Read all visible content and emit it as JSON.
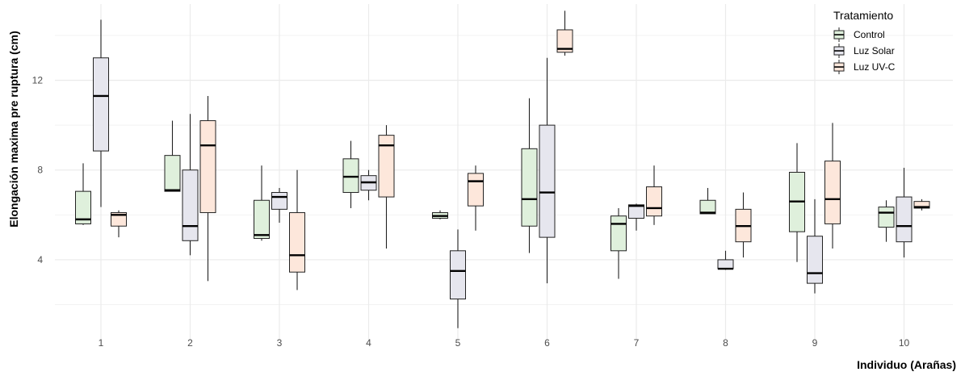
{
  "chart_data": {
    "type": "boxplot",
    "xlabel": "Individuo (Arañas)",
    "ylabel": "Elongación maxima pre ruptura (cm)",
    "ylim": [
      0.4,
      15.4
    ],
    "y_ticks": [
      4,
      8,
      12
    ],
    "categories": [
      "1",
      "2",
      "3",
      "4",
      "5",
      "6",
      "7",
      "8",
      "9",
      "10"
    ],
    "grid": true,
    "legend": {
      "title": "Tratamiento",
      "position": "top-right",
      "entries": [
        "Control",
        "Luz Solar",
        "Luz UV-C"
      ]
    },
    "series": [
      {
        "name": "Control",
        "color": "#dff0dc",
        "boxes": [
          {
            "category": "1",
            "min": 5.55,
            "q1": 5.6,
            "median": 5.8,
            "q3": 7.05,
            "max": 8.3
          },
          {
            "category": "2",
            "min": 7.05,
            "q1": 7.05,
            "median": 7.1,
            "q3": 8.65,
            "max": 10.2
          },
          {
            "category": "3",
            "min": 4.85,
            "q1": 4.95,
            "median": 5.1,
            "q3": 6.65,
            "max": 8.2
          },
          {
            "category": "4",
            "min": 6.3,
            "q1": 7.0,
            "median": 7.7,
            "q3": 8.5,
            "max": 9.3
          },
          {
            "category": "5",
            "min": 5.8,
            "q1": 5.85,
            "median": 5.95,
            "q3": 6.1,
            "max": 6.2
          },
          {
            "category": "6",
            "min": 4.3,
            "q1": 5.5,
            "median": 6.7,
            "q3": 8.95,
            "max": 11.2
          },
          {
            "category": "7",
            "min": 3.15,
            "q1": 4.4,
            "median": 5.6,
            "q3": 5.95,
            "max": 6.3
          },
          {
            "category": "8",
            "min": 6.05,
            "q1": 6.05,
            "median": 6.1,
            "q3": 6.65,
            "max": 7.2
          },
          {
            "category": "9",
            "min": 3.9,
            "q1": 5.25,
            "median": 6.6,
            "q3": 7.9,
            "max": 9.2
          },
          {
            "category": "10",
            "min": 4.8,
            "q1": 5.45,
            "median": 6.1,
            "q3": 6.35,
            "max": 6.65
          }
        ]
      },
      {
        "name": "Luz Solar",
        "color": "#e6e6ee",
        "boxes": [
          {
            "category": "1",
            "min": 6.35,
            "q1": 8.85,
            "median": 11.3,
            "q3": 13.0,
            "max": 14.7
          },
          {
            "category": "2",
            "min": 4.2,
            "q1": 4.85,
            "median": 5.5,
            "q3": 8.0,
            "max": 10.5
          },
          {
            "category": "3",
            "min": 5.65,
            "q1": 6.25,
            "median": 6.8,
            "q3": 7.0,
            "max": 7.2
          },
          {
            "category": "4",
            "min": 6.65,
            "q1": 7.1,
            "median": 7.45,
            "q3": 7.75,
            "max": 8.0
          },
          {
            "category": "5",
            "min": 0.95,
            "q1": 2.25,
            "median": 3.5,
            "q3": 4.4,
            "max": 5.35
          },
          {
            "category": "6",
            "min": 2.95,
            "q1": 5.0,
            "median": 7.0,
            "q3": 10.0,
            "max": 13.0
          },
          {
            "category": "7",
            "min": 5.3,
            "q1": 5.85,
            "median": 6.4,
            "q3": 6.45,
            "max": 6.5
          },
          {
            "category": "8",
            "min": 3.55,
            "q1": 3.6,
            "median": 3.6,
            "q3": 4.0,
            "max": 4.4
          },
          {
            "category": "9",
            "min": 2.5,
            "q1": 2.95,
            "median": 3.4,
            "q3": 5.05,
            "max": 6.7
          },
          {
            "category": "10",
            "min": 4.1,
            "q1": 4.8,
            "median": 5.5,
            "q3": 6.8,
            "max": 8.1
          }
        ]
      },
      {
        "name": "Luz UV-C",
        "color": "#fde7db",
        "boxes": [
          {
            "category": "1",
            "min": 5.0,
            "q1": 5.5,
            "median": 6.0,
            "q3": 6.1,
            "max": 6.2
          },
          {
            "category": "2",
            "min": 3.05,
            "q1": 6.1,
            "median": 9.1,
            "q3": 10.2,
            "max": 11.3
          },
          {
            "category": "3",
            "min": 2.65,
            "q1": 3.45,
            "median": 4.2,
            "q3": 6.1,
            "max": 8.0
          },
          {
            "category": "4",
            "min": 4.5,
            "q1": 6.8,
            "median": 9.1,
            "q3": 9.55,
            "max": 10.0
          },
          {
            "category": "5",
            "min": 5.3,
            "q1": 6.4,
            "median": 7.5,
            "q3": 7.85,
            "max": 8.2
          },
          {
            "category": "6",
            "min": 13.1,
            "q1": 13.25,
            "median": 13.4,
            "q3": 14.25,
            "max": 15.1
          },
          {
            "category": "7",
            "min": 5.55,
            "q1": 5.95,
            "median": 6.3,
            "q3": 7.25,
            "max": 8.2
          },
          {
            "category": "8",
            "min": 4.1,
            "q1": 4.8,
            "median": 5.5,
            "q3": 6.25,
            "max": 7.0
          },
          {
            "category": "9",
            "min": 4.5,
            "q1": 5.6,
            "median": 6.7,
            "q3": 8.4,
            "max": 10.1
          },
          {
            "category": "10",
            "min": 6.2,
            "q1": 6.3,
            "median": 6.35,
            "q3": 6.6,
            "max": 6.7
          }
        ]
      }
    ]
  }
}
